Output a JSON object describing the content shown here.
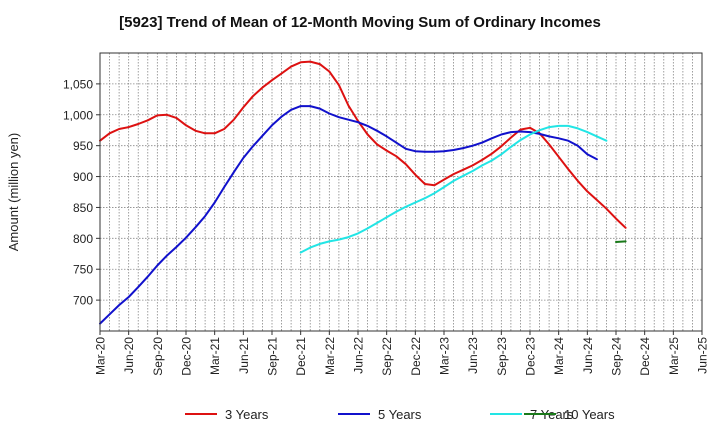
{
  "chart_data": {
    "type": "line",
    "title": "[5923]  Trend of Mean of 12-Month Moving Sum of Ordinary Incomes",
    "xlabel": "",
    "ylabel": "Amount (million yen)",
    "ylim": [
      650,
      1100
    ],
    "yticks": [
      700,
      750,
      800,
      850,
      900,
      950,
      1000,
      1050
    ],
    "ytick_labels": [
      "700",
      "750",
      "800",
      "850",
      "900",
      "950",
      "1,000",
      "1,050"
    ],
    "xlim": [
      0,
      63
    ],
    "xticks": [
      0,
      3,
      6,
      9,
      12,
      15,
      18,
      21,
      24,
      27,
      30,
      33,
      36,
      39,
      42,
      45,
      48,
      51,
      54,
      57,
      60,
      63
    ],
    "xtick_labels": [
      "Mar-20",
      "Jun-20",
      "Sep-20",
      "Dec-20",
      "Mar-21",
      "Jun-21",
      "Sep-21",
      "Dec-21",
      "Mar-22",
      "Jun-22",
      "Sep-22",
      "Dec-22",
      "Mar-23",
      "Jun-23",
      "Sep-23",
      "Dec-23",
      "Mar-24",
      "Jun-24",
      "Sep-24",
      "Dec-24",
      "Mar-25",
      "Jun-25"
    ],
    "grid": true,
    "legend_position": "bottom",
    "series": [
      {
        "name": "3 Years",
        "color": "#dd1111",
        "points": [
          [
            0,
            958
          ],
          [
            1,
            970
          ],
          [
            2,
            977
          ],
          [
            3,
            980
          ],
          [
            4,
            985
          ],
          [
            5,
            991
          ],
          [
            6,
            999
          ],
          [
            7,
            1000
          ],
          [
            8,
            995
          ],
          [
            9,
            983
          ],
          [
            10,
            974
          ],
          [
            11,
            970
          ],
          [
            12,
            970
          ],
          [
            13,
            977
          ],
          [
            14,
            992
          ],
          [
            15,
            1012
          ],
          [
            16,
            1030
          ],
          [
            17,
            1044
          ],
          [
            18,
            1056
          ],
          [
            19,
            1067
          ],
          [
            20,
            1078
          ],
          [
            21,
            1085
          ],
          [
            22,
            1086
          ],
          [
            23,
            1082
          ],
          [
            24,
            1070
          ],
          [
            25,
            1048
          ],
          [
            26,
            1015
          ],
          [
            27,
            990
          ],
          [
            28,
            968
          ],
          [
            29,
            952
          ],
          [
            30,
            942
          ],
          [
            31,
            933
          ],
          [
            32,
            920
          ],
          [
            33,
            903
          ],
          [
            34,
            888
          ],
          [
            35,
            886
          ],
          [
            36,
            895
          ],
          [
            37,
            904
          ],
          [
            38,
            911
          ],
          [
            39,
            918
          ],
          [
            40,
            927
          ],
          [
            41,
            937
          ],
          [
            42,
            949
          ],
          [
            43,
            963
          ],
          [
            44,
            976
          ],
          [
            45,
            979
          ],
          [
            46,
            970
          ],
          [
            47,
            952
          ],
          [
            48,
            932
          ],
          [
            49,
            912
          ],
          [
            50,
            893
          ],
          [
            51,
            876
          ],
          [
            52,
            862
          ],
          [
            53,
            848
          ],
          [
            54,
            832
          ],
          [
            55,
            817
          ]
        ]
      },
      {
        "name": "5 Years",
        "color": "#1111cc",
        "points": [
          [
            0,
            662
          ],
          [
            1,
            677
          ],
          [
            2,
            692
          ],
          [
            3,
            705
          ],
          [
            4,
            721
          ],
          [
            5,
            738
          ],
          [
            6,
            756
          ],
          [
            7,
            772
          ],
          [
            8,
            786
          ],
          [
            9,
            801
          ],
          [
            10,
            818
          ],
          [
            11,
            836
          ],
          [
            12,
            858
          ],
          [
            13,
            883
          ],
          [
            14,
            907
          ],
          [
            15,
            930
          ],
          [
            16,
            949
          ],
          [
            17,
            966
          ],
          [
            18,
            983
          ],
          [
            19,
            997
          ],
          [
            20,
            1008
          ],
          [
            21,
            1014
          ],
          [
            22,
            1014
          ],
          [
            23,
            1010
          ],
          [
            24,
            1002
          ],
          [
            25,
            996
          ],
          [
            26,
            992
          ],
          [
            27,
            988
          ],
          [
            28,
            982
          ],
          [
            29,
            974
          ],
          [
            30,
            965
          ],
          [
            31,
            955
          ],
          [
            32,
            945
          ],
          [
            33,
            941
          ],
          [
            34,
            940
          ],
          [
            35,
            940
          ],
          [
            36,
            941
          ],
          [
            37,
            943
          ],
          [
            38,
            946
          ],
          [
            39,
            950
          ],
          [
            40,
            955
          ],
          [
            41,
            962
          ],
          [
            42,
            968
          ],
          [
            43,
            972
          ],
          [
            44,
            973
          ],
          [
            45,
            972
          ],
          [
            46,
            969
          ],
          [
            47,
            965
          ],
          [
            48,
            962
          ],
          [
            49,
            958
          ],
          [
            50,
            950
          ],
          [
            51,
            936
          ],
          [
            52,
            928
          ]
        ]
      },
      {
        "name": "7 Years",
        "color": "#22e5e5",
        "points": [
          [
            21,
            777
          ],
          [
            22,
            785
          ],
          [
            23,
            791
          ],
          [
            24,
            795
          ],
          [
            25,
            798
          ],
          [
            26,
            802
          ],
          [
            27,
            808
          ],
          [
            28,
            816
          ],
          [
            29,
            825
          ],
          [
            30,
            834
          ],
          [
            31,
            843
          ],
          [
            32,
            851
          ],
          [
            33,
            858
          ],
          [
            34,
            865
          ],
          [
            35,
            873
          ],
          [
            36,
            883
          ],
          [
            37,
            893
          ],
          [
            38,
            901
          ],
          [
            39,
            909
          ],
          [
            40,
            918
          ],
          [
            41,
            926
          ],
          [
            42,
            936
          ],
          [
            43,
            948
          ],
          [
            44,
            959
          ],
          [
            45,
            968
          ],
          [
            46,
            975
          ],
          [
            47,
            980
          ],
          [
            48,
            982
          ],
          [
            49,
            982
          ],
          [
            50,
            978
          ],
          [
            51,
            972
          ],
          [
            52,
            965
          ],
          [
            53,
            958
          ]
        ]
      },
      {
        "name": "10 Years",
        "color": "#1a7a1a",
        "points": [
          [
            54,
            794
          ],
          [
            55,
            795
          ]
        ]
      }
    ]
  }
}
